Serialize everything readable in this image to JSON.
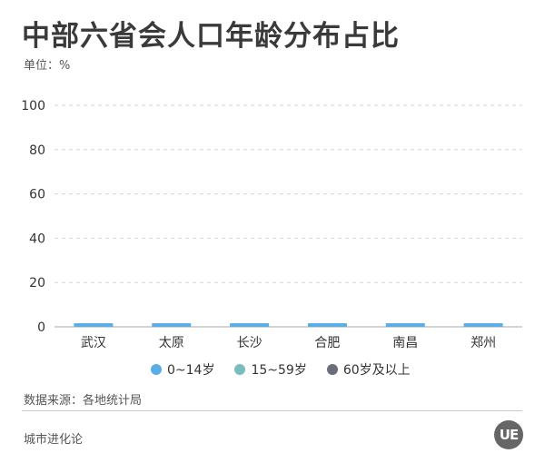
{
  "title": "中部六省会人口年龄分布占比",
  "unit": "单位：%",
  "source": "数据来源：各地统计局",
  "footer": "城市进化论",
  "logo": "UE",
  "colors": {
    "s0": "#5aaee6",
    "s1": "#78bcc0",
    "s2": "#6b6e78",
    "grid": "#d6d6d6",
    "axis": "#aaaaaa"
  },
  "chart_data": {
    "type": "bar",
    "categories": [
      "武汉",
      "太原",
      "长沙",
      "合肥",
      "南昌",
      "郑州"
    ],
    "series": [
      {
        "name": "0~14岁",
        "values": [
          1,
          1,
          1,
          1,
          1,
          1
        ]
      },
      {
        "name": "15~59岁",
        "values": [
          0,
          0,
          0,
          0,
          0,
          0
        ]
      },
      {
        "name": "60岁及以上",
        "values": [
          0,
          0,
          0,
          0,
          0,
          0
        ]
      }
    ],
    "yticks": [
      "0",
      "20",
      "40",
      "60",
      "80",
      "100"
    ],
    "ylim": [
      0,
      100
    ],
    "grid": true,
    "legend_position": "bottom"
  }
}
